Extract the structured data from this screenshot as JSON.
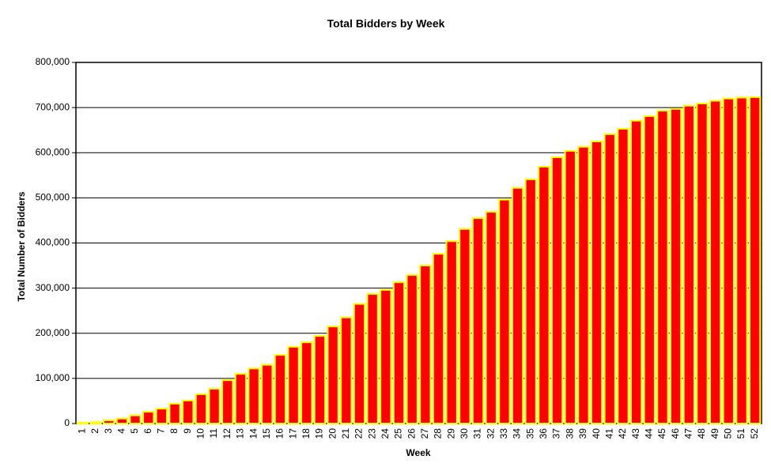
{
  "chart_data": {
    "type": "bar",
    "title": "Total Bidders by Week",
    "x_label": "Week",
    "y_label": "Total Number of Bidders",
    "categories": [
      "1",
      "2",
      "3",
      "4",
      "5",
      "6",
      "7",
      "8",
      "9",
      "10",
      "11",
      "12",
      "13",
      "14",
      "15",
      "16",
      "17",
      "18",
      "19",
      "20",
      "21",
      "22",
      "23",
      "24",
      "25",
      "26",
      "27",
      "28",
      "29",
      "30",
      "31",
      "32",
      "33",
      "34",
      "35",
      "36",
      "37",
      "38",
      "39",
      "40",
      "41",
      "42",
      "43",
      "44",
      "45",
      "46",
      "47",
      "48",
      "49",
      "50",
      "51",
      "52"
    ],
    "values": [
      2000,
      3000,
      7000,
      11000,
      18000,
      26000,
      33000,
      44000,
      51000,
      65000,
      77000,
      96000,
      110000,
      122000,
      130000,
      152000,
      170000,
      180000,
      194000,
      215000,
      235000,
      265000,
      287000,
      296000,
      313000,
      329000,
      350000,
      376000,
      404000,
      431000,
      455000,
      469000,
      496000,
      522000,
      541000,
      569000,
      590000,
      604000,
      613000,
      625000,
      641000,
      653000,
      671000,
      681000,
      693000,
      697000,
      704000,
      709000,
      715000,
      720000,
      722000,
      723000
    ],
    "color": "#ff0000",
    "edge_color": "#ffff00",
    "ylim": [
      0,
      800000
    ],
    "yticks": [
      0,
      {
        "value": 100000,
        "label": "100,000"
      },
      {
        "value": 200000,
        "label": "200,000"
      },
      {
        "value": 300000,
        "label": "300,000"
      },
      {
        "value": 400000,
        "label": "400,000"
      },
      {
        "value": 500000,
        "label": "500,000"
      },
      {
        "value": 600000,
        "label": "600,000"
      },
      {
        "value": 700000,
        "label": "700,000"
      },
      {
        "value": 800000,
        "label": "800,000"
      }
    ],
    "grid": true
  }
}
